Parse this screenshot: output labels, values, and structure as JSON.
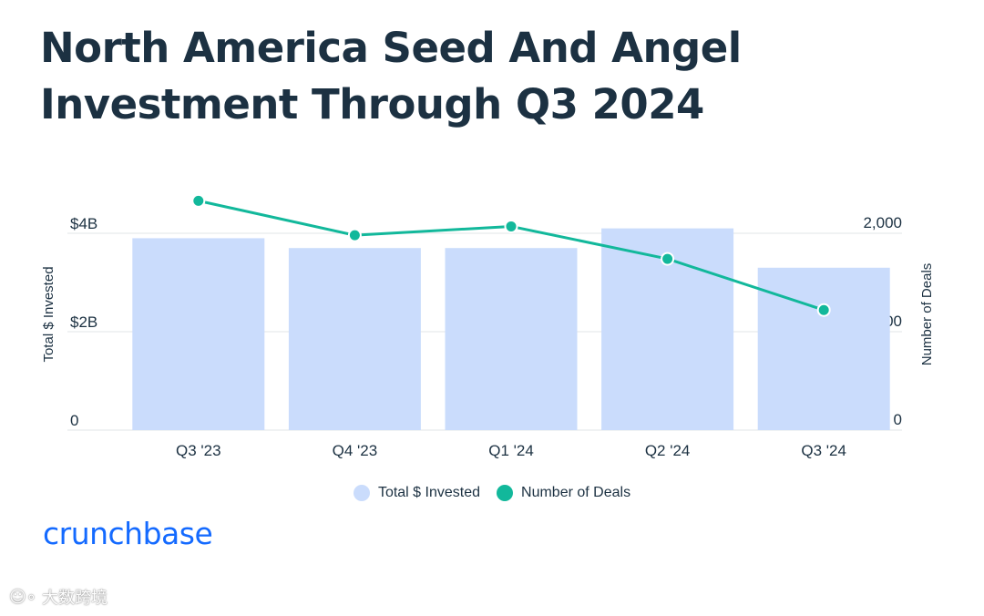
{
  "title_lines": [
    "North America Seed And Angel",
    "Investment Through Q3 2024"
  ],
  "brand": "crunchbase",
  "watermark": {
    "icon": "dashuju-logo-icon",
    "text": "大数跨境"
  },
  "colors": {
    "title": "#1c3142",
    "bar": "#cadcfc",
    "line": "#12b89b",
    "grid": "#e6e9ec",
    "axis_text": "#1c3142",
    "brand": "#146aff"
  },
  "chart_data": {
    "type": "bar",
    "categories": [
      "Q3 '23",
      "Q4 '23",
      "Q1 '24",
      "Q2 '24",
      "Q3 '24"
    ],
    "series": [
      {
        "name": "Total $ Invested",
        "type": "bar",
        "axis": "left",
        "values": [
          3.9,
          3.7,
          3.7,
          4.1,
          3.3
        ]
      },
      {
        "name": "Number of Deals",
        "type": "line",
        "axis": "right",
        "values": [
          2330,
          1980,
          2070,
          1740,
          1220
        ]
      }
    ],
    "y_left": {
      "label": "Total $ Invested",
      "min": 0,
      "max": 4,
      "ticks": [
        0,
        2,
        4
      ],
      "tick_labels": [
        "0",
        "$2B",
        "$4B"
      ]
    },
    "y_right": {
      "label": "Number of Deals",
      "min": 0,
      "max": 2000,
      "ticks": [
        0,
        1000,
        2000
      ],
      "tick_labels": [
        "0",
        "1,000",
        "2,000"
      ]
    },
    "grid": true,
    "legend": {
      "position": "bottom-center",
      "entries": [
        "Total $ Invested",
        "Number of Deals"
      ]
    }
  }
}
